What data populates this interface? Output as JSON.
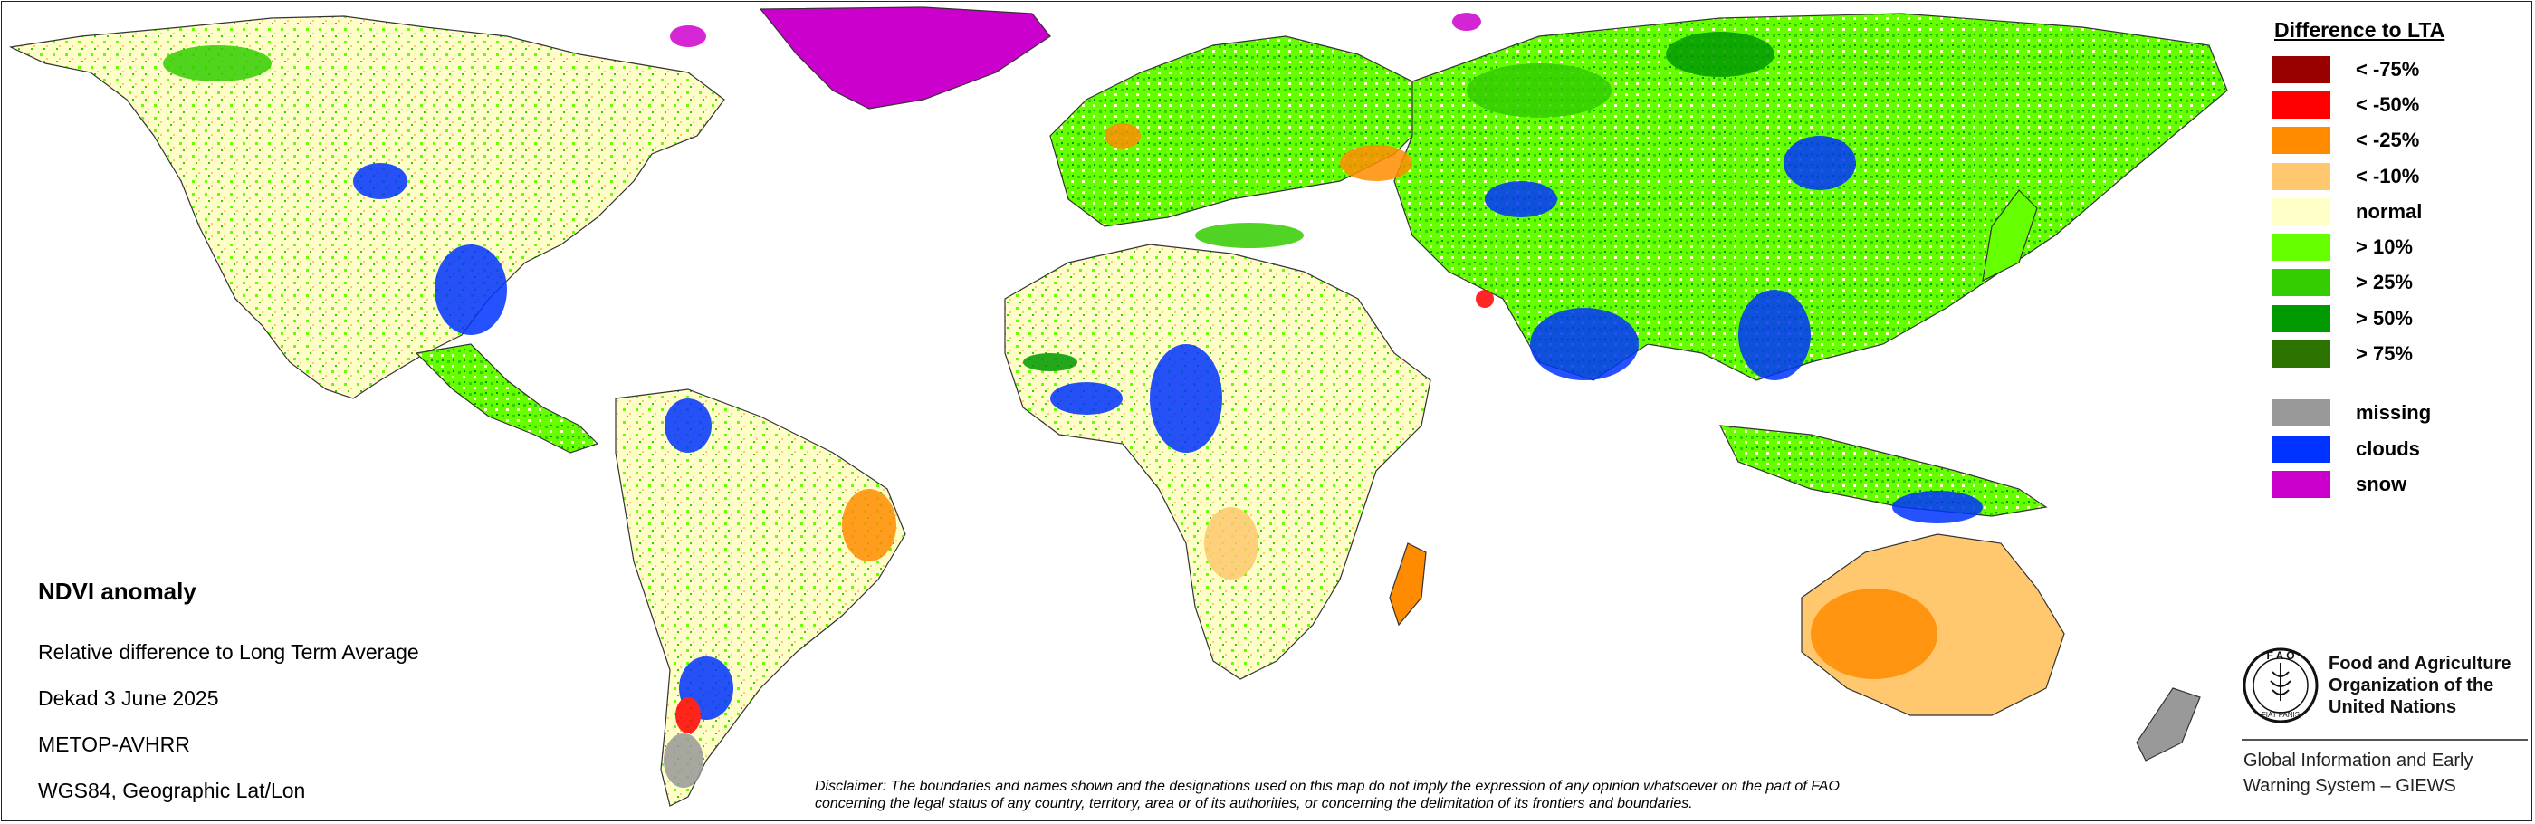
{
  "info": {
    "title": "NDVI anomaly",
    "lines": [
      "Relative difference to Long Term Average",
      "Dekad 3 June 2025",
      "METOP-AVHRR",
      "WGS84, Geographic Lat/Lon"
    ]
  },
  "legend": {
    "title": "Difference to LTA",
    "classes": [
      {
        "label": "< -75%",
        "color": "#990000"
      },
      {
        "label": "< -50%",
        "color": "#ff0000"
      },
      {
        "label": "< -25%",
        "color": "#ff8c00"
      },
      {
        "label": "< -10%",
        "color": "#ffc86e"
      },
      {
        "label": "normal",
        "color": "#ffffc8"
      },
      {
        "label": "> 10%",
        "color": "#66ff00"
      },
      {
        "label": "> 25%",
        "color": "#33cc00"
      },
      {
        "label": "> 50%",
        "color": "#009900"
      },
      {
        "label": "> 75%",
        "color": "#2d7300"
      }
    ],
    "extra": [
      {
        "label": "missing",
        "color": "#999999"
      },
      {
        "label": "clouds",
        "color": "#0033ff"
      },
      {
        "label": "snow",
        "color": "#cc00cc"
      }
    ]
  },
  "disclaimer": {
    "line1": "Disclaimer: The boundaries and names shown and the designations used on this map do not imply the expression of any opinion whatsoever on the part of FAO",
    "line2": "concerning the legal status of any country, territory, area or of its authorities, or concerning the delimitation of its frontiers and boundaries."
  },
  "org": {
    "name_line1": "Food and Agriculture",
    "name_line2": "Organization of the",
    "name_line3": "United Nations",
    "system_line1": "Global Information and Early",
    "system_line2": "Warning System – GIEWS",
    "emblem_letters": "F A O",
    "emblem_motto": "FIAT PANIS"
  },
  "map": {
    "land_color": "#fffdc8",
    "border_color": "#333333"
  }
}
